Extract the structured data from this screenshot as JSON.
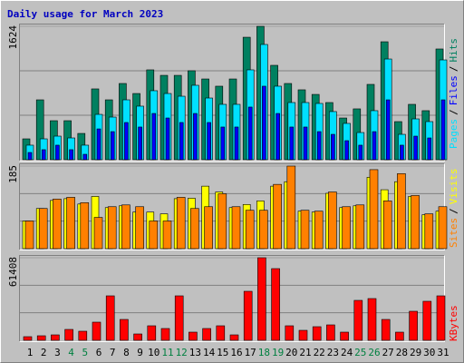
{
  "chart_data": [
    {
      "type": "bar",
      "title": "Daily usage for March 2023",
      "categories": [
        "1",
        "2",
        "3",
        "4",
        "5",
        "6",
        "7",
        "8",
        "9",
        "10",
        "11",
        "12",
        "13",
        "14",
        "15",
        "16",
        "17",
        "18",
        "19",
        "20",
        "21",
        "22",
        "23",
        "24",
        "25",
        "26",
        "27",
        "28",
        "29",
        "30",
        "31"
      ],
      "category_colors": [
        "#000000",
        "#000000",
        "#000000",
        "#008040",
        "#008040",
        "#000000",
        "#000000",
        "#000000",
        "#000000",
        "#000000",
        "#008040",
        "#008040",
        "#000000",
        "#000000",
        "#000000",
        "#000000",
        "#000000",
        "#008040",
        "#008040",
        "#000000",
        "#000000",
        "#000000",
        "#000000",
        "#000000",
        "#008040",
        "#008040",
        "#000000",
        "#000000",
        "#000000",
        "#000000",
        "#000000"
      ],
      "legend_separator": "/",
      "series": [
        {
          "name": "Pages",
          "color": "#00e0ff",
          "values": [
            177,
            254,
            287,
            265,
            177,
            552,
            519,
            729,
            652,
            840,
            806,
            773,
            906,
            751,
            674,
            674,
            1094,
            1403,
            895,
            696,
            696,
            685,
            586,
            442,
            331,
            597,
            1226,
            309,
            497,
            464,
            1215
          ]
        },
        {
          "name": "Files",
          "color": "#0000ff",
          "values": [
            88,
            122,
            177,
            122,
            66,
            375,
            342,
            453,
            398,
            563,
            508,
            453,
            563,
            453,
            398,
            398,
            641,
            895,
            563,
            398,
            398,
            342,
            309,
            232,
            177,
            342,
            729,
            177,
            287,
            265,
            729
          ]
        },
        {
          "name": "Hits",
          "color": "#008060",
          "values": [
            254,
            729,
            475,
            475,
            320,
            862,
            729,
            928,
            806,
            1094,
            1027,
            1027,
            1083,
            983,
            895,
            983,
            1491,
            1624,
            1149,
            928,
            851,
            795,
            696,
            508,
            619,
            917,
            1436,
            464,
            674,
            597,
            1348
          ]
        }
      ],
      "ylim": [
        0,
        1624
      ],
      "yticks": [
        1624
      ]
    },
    {
      "type": "bar",
      "series": [
        {
          "name": "Sites",
          "color": "#ff8000",
          "values": [
            62,
            90,
            111,
            115,
            103,
            70,
            94,
            98,
            94,
            62,
            62,
            115,
            90,
            94,
            123,
            94,
            86,
            86,
            144,
            185,
            86,
            84,
            127,
            94,
            98,
            177,
            107,
            168,
            119,
            78,
            94
          ]
        },
        {
          "name": "Visits",
          "color": "#ffff00",
          "values": [
            62,
            90,
            108,
            112,
            100,
            117,
            92,
            96,
            82,
            82,
            78,
            112,
            113,
            140,
            127,
            92,
            99,
            107,
            140,
            150,
            84,
            82,
            124,
            92,
            96,
            160,
            132,
            150,
            117,
            76,
            84
          ]
        }
      ],
      "ylim": [
        0,
        185
      ],
      "yticks": [
        185
      ]
    },
    {
      "type": "bar",
      "series": [
        {
          "name": "KBytes",
          "color": "#ff0000",
          "values": [
            2700,
            3374,
            4049,
            8098,
            6748,
            13496,
            33066,
            15521,
            4724,
            10797,
            8773,
            33066,
            6073,
            8773,
            10797,
            4049,
            36440,
            61408,
            53310,
            10797,
            7423,
            10122,
            11472,
            6073,
            29692,
            31042,
            15521,
            6073,
            21593,
            29017,
            33066
          ]
        }
      ],
      "ylim": [
        0,
        61408
      ],
      "yticks": [
        61408
      ]
    }
  ]
}
